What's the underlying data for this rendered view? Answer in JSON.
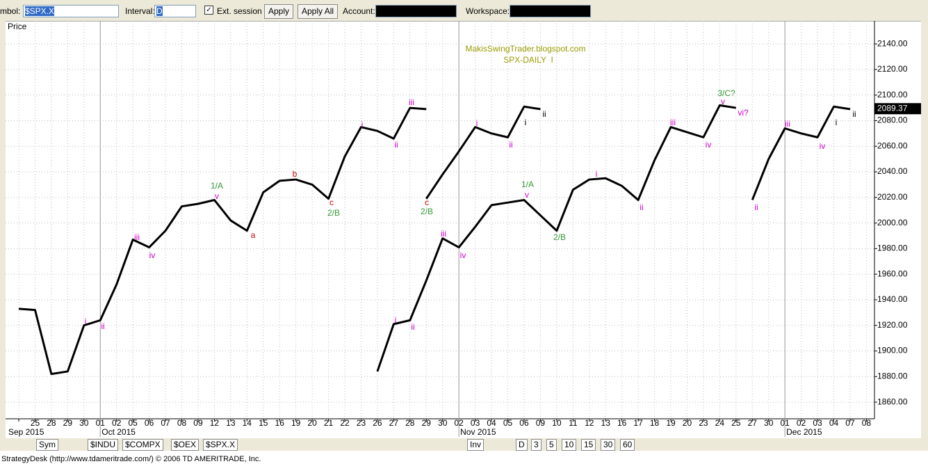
{
  "toolbar": {
    "symbol_label": "mbol:",
    "symbol": "$SPX.X",
    "interval_label": "Interval:",
    "interval": "D",
    "ext_session": "Ext. session",
    "apply": "Apply",
    "apply_all": "Apply All",
    "account_label": "Account:",
    "workspace_label": "Workspace:"
  },
  "chart_data": {
    "type": "line",
    "y_label": "Price",
    "watermark": [
      "MakisSwingTrader.blogspot.com",
      "SPX-DAILY  I"
    ],
    "categories": [
      null,
      "25",
      "28",
      "29",
      "30",
      "01",
      "02",
      "05",
      "06",
      "07",
      "08",
      "09",
      "12",
      "13",
      "14",
      "15",
      "16",
      "19",
      "20",
      "21",
      "22",
      "23",
      "26",
      "27",
      "28",
      "29",
      "30",
      "02",
      "03",
      "04",
      "05",
      "06",
      "09",
      "10",
      "11",
      "12",
      "13",
      "16",
      "17",
      "18",
      "19",
      "20",
      "23",
      "24",
      "25",
      "27",
      "30",
      "01",
      "02",
      "03",
      "04",
      "07",
      "08"
    ],
    "months": [
      "Sep 2015",
      "Oct 2015",
      "Nov 2015",
      "Dec 2015"
    ],
    "series": [
      {
        "color": "#000000",
        "values": [
          1933,
          1932,
          1882,
          1884,
          1920,
          1924,
          1952,
          1987,
          1981,
          1994,
          2013,
          2015,
          2018,
          2002,
          1994,
          2024,
          2033,
          2034,
          2030,
          2019,
          2052,
          2075,
          2072,
          2066,
          2090,
          2089,
          null,
          null,
          null,
          null,
          null,
          null,
          null,
          null,
          null,
          null,
          null,
          null,
          null,
          null,
          null,
          null,
          null,
          null,
          null,
          null,
          null,
          null,
          null,
          null,
          null,
          null,
          null
        ]
      },
      {
        "color": "#000000",
        "values": [
          null,
          null,
          null,
          null,
          null,
          null,
          null,
          null,
          null,
          null,
          null,
          null,
          null,
          null,
          null,
          null,
          null,
          null,
          null,
          null,
          null,
          null,
          null,
          null,
          null,
          2019,
          2038,
          2056,
          2075,
          2070,
          2067,
          2091,
          2089,
          null,
          null,
          null,
          null,
          null,
          null,
          null,
          null,
          null,
          null,
          null,
          null,
          null,
          null,
          null,
          null,
          null,
          null,
          null,
          null
        ]
      },
      {
        "color": "#000000",
        "values": [
          null,
          null,
          null,
          null,
          null,
          null,
          null,
          null,
          null,
          null,
          null,
          null,
          null,
          null,
          null,
          null,
          null,
          null,
          null,
          null,
          null,
          null,
          1884,
          1921,
          1924,
          1955,
          1988,
          1981,
          1997,
          2014,
          2016,
          2018,
          2006,
          1994,
          2026,
          2034,
          2035,
          2029,
          2018,
          2049,
          2075,
          2071,
          2067,
          2092,
          2090,
          null,
          null,
          null,
          null,
          null,
          null,
          null,
          null
        ]
      },
      {
        "color": "#000000",
        "values": [
          null,
          null,
          null,
          null,
          null,
          null,
          null,
          null,
          null,
          null,
          null,
          null,
          null,
          null,
          null,
          null,
          null,
          null,
          null,
          null,
          null,
          null,
          null,
          null,
          null,
          null,
          null,
          null,
          null,
          null,
          null,
          null,
          null,
          null,
          null,
          null,
          null,
          null,
          null,
          null,
          null,
          null,
          null,
          null,
          null,
          2018,
          2050,
          2074,
          2070,
          2067,
          2091,
          2089,
          null
        ]
      }
    ],
    "ylim": [
      1847,
      2158
    ],
    "yticks": [
      {
        "value": 1860,
        "label": "1860.00"
      },
      {
        "value": 1880,
        "label": "1880.00"
      },
      {
        "value": 1900,
        "label": "1900.00"
      },
      {
        "value": 1920,
        "label": "1920.00"
      },
      {
        "value": 1940,
        "label": "1940.00"
      },
      {
        "value": 1960,
        "label": "1960.00"
      },
      {
        "value": 1980,
        "label": "1980.00"
      },
      {
        "value": 2000,
        "label": "2000.00"
      },
      {
        "value": 2020,
        "label": "2020.00"
      },
      {
        "value": 2040,
        "label": "2040.00"
      },
      {
        "value": 2060,
        "label": "2060.00"
      },
      {
        "value": 2080,
        "label": "2080.00"
      },
      {
        "value": 2100,
        "label": "2100.00"
      },
      {
        "value": 2120,
        "label": "2120.00"
      },
      {
        "value": 2140,
        "label": "2140.00"
      }
    ],
    "grid": true,
    "last_price": 2089.37,
    "annotations": [
      {
        "text": "i",
        "color": "#cc00cc"
      },
      {
        "text": "ii",
        "color": "#cc00cc"
      },
      {
        "text": "iii",
        "color": "#cc00cc"
      },
      {
        "text": "iv",
        "color": "#cc00cc"
      },
      {
        "text": "1/A",
        "color": "#339933"
      },
      {
        "text": "v",
        "color": "#cc00cc"
      },
      {
        "text": "a",
        "color": "#cc0000"
      },
      {
        "text": "b",
        "color": "#cc0000"
      },
      {
        "text": "c",
        "color": "#cc0000"
      },
      {
        "text": "2/B",
        "color": "#339933"
      },
      {
        "text": "i",
        "color": "#cc00cc"
      },
      {
        "text": "ii",
        "color": "#cc00cc"
      },
      {
        "text": "iii",
        "color": "#cc00cc"
      },
      {
        "text": "c",
        "color": "#cc0000"
      },
      {
        "text": "2/B",
        "color": "#339933"
      },
      {
        "text": "i",
        "color": "#cc00cc"
      },
      {
        "text": "ii",
        "color": "#cc00cc"
      },
      {
        "text": "i",
        "color": "#000000"
      },
      {
        "text": "ii",
        "color": "#000000"
      },
      {
        "text": "i",
        "color": "#cc00cc"
      },
      {
        "text": "ii",
        "color": "#cc00cc"
      },
      {
        "text": "iii",
        "color": "#cc00cc"
      },
      {
        "text": "iv",
        "color": "#cc00cc"
      },
      {
        "text": "1/A",
        "color": "#339933"
      },
      {
        "text": "v",
        "color": "#cc00cc"
      },
      {
        "text": "2/B",
        "color": "#339933"
      },
      {
        "text": "i",
        "color": "#cc00cc"
      },
      {
        "text": "ii",
        "color": "#cc00cc"
      },
      {
        "text": "iii",
        "color": "#cc00cc"
      },
      {
        "text": "iv",
        "color": "#cc00cc"
      },
      {
        "text": "3/C?",
        "color": "#339933"
      },
      {
        "text": "v",
        "color": "#cc00cc"
      },
      {
        "text": "vi?",
        "color": "#cc00cc"
      },
      {
        "text": "ii",
        "color": "#cc00cc"
      },
      {
        "text": "iii",
        "color": "#cc00cc"
      },
      {
        "text": "iv",
        "color": "#cc00cc"
      },
      {
        "text": "i",
        "color": "#000000"
      },
      {
        "text": "ii",
        "color": "#000000"
      }
    ]
  },
  "tabs": {
    "symbols": [
      "Sym",
      "$INDU",
      "$COMPX",
      "$OEX",
      "$SPX.X"
    ],
    "intervals": [
      "Inv",
      "D",
      "3",
      "5",
      "10",
      "15",
      "30",
      "60"
    ]
  },
  "status": "StrategyDesk (http://www.tdameritrade.com/) © 2006 TD AMERITRADE, Inc."
}
